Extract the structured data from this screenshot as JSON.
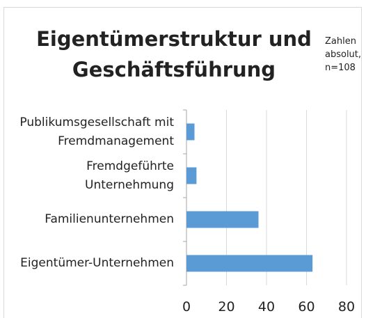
{
  "chart_data": {
    "type": "barh",
    "title": "Eigentümerstruktur und Geschäftsführung",
    "annotation": "Zahlen absolut, n=108",
    "categories": [
      "Publikumsgesellschaft mit Fremdmanagement",
      "Fremdgeführte Unternehmung",
      "Familienunternehmen",
      "Eigentümer-Unternehmen"
    ],
    "values": [
      4,
      5,
      36,
      63
    ],
    "color": "#5b9bd5",
    "xlim": [
      0,
      80
    ],
    "xticks": [
      0,
      20,
      40,
      60,
      80
    ],
    "grid": true
  }
}
